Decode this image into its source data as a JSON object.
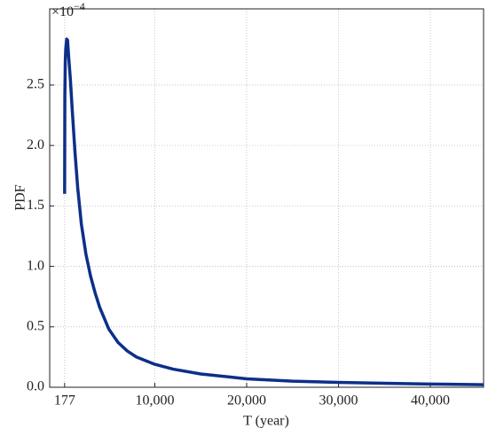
{
  "chart_data": {
    "type": "line",
    "x_label": "T (year)",
    "y_label": "PDF",
    "y_multiplier": {
      "base": "×10",
      "exponent": "−4"
    },
    "series": [
      {
        "name": "PDF",
        "color": "#0d2f8a",
        "x": [
          177,
          200,
          250,
          300,
          400,
          500,
          600,
          800,
          1000,
          1300,
          1600,
          2000,
          2500,
          3000,
          3500,
          4000,
          5000,
          6000,
          7000,
          8000,
          10000,
          12000,
          15000,
          20000,
          25000,
          30000,
          35000,
          40000,
          45000,
          45800
        ],
        "values": [
          1.6,
          2.4,
          2.7,
          2.8,
          2.88,
          2.87,
          2.75,
          2.55,
          2.3,
          1.95,
          1.65,
          1.35,
          1.1,
          0.92,
          0.78,
          0.66,
          0.48,
          0.37,
          0.3,
          0.25,
          0.19,
          0.15,
          0.11,
          0.07,
          0.05,
          0.04,
          0.033,
          0.027,
          0.022,
          0.021
        ]
      }
    ],
    "xlim": [
      -1450,
      45800
    ],
    "ylim": [
      0,
      3.13
    ],
    "xticks": [
      177,
      {
        "value": 10000,
        "label": "10,000"
      },
      {
        "value": 20000,
        "label": "20,000"
      },
      {
        "value": 30000,
        "label": "30,000"
      },
      {
        "value": 40000,
        "label": "40,000"
      }
    ],
    "yticks": [
      {
        "value": 0,
        "label": "0.0"
      },
      0.5,
      {
        "value": 1,
        "label": "1.0"
      },
      1.5,
      {
        "value": 2,
        "label": "2.0"
      },
      2.5
    ],
    "grid": true
  }
}
